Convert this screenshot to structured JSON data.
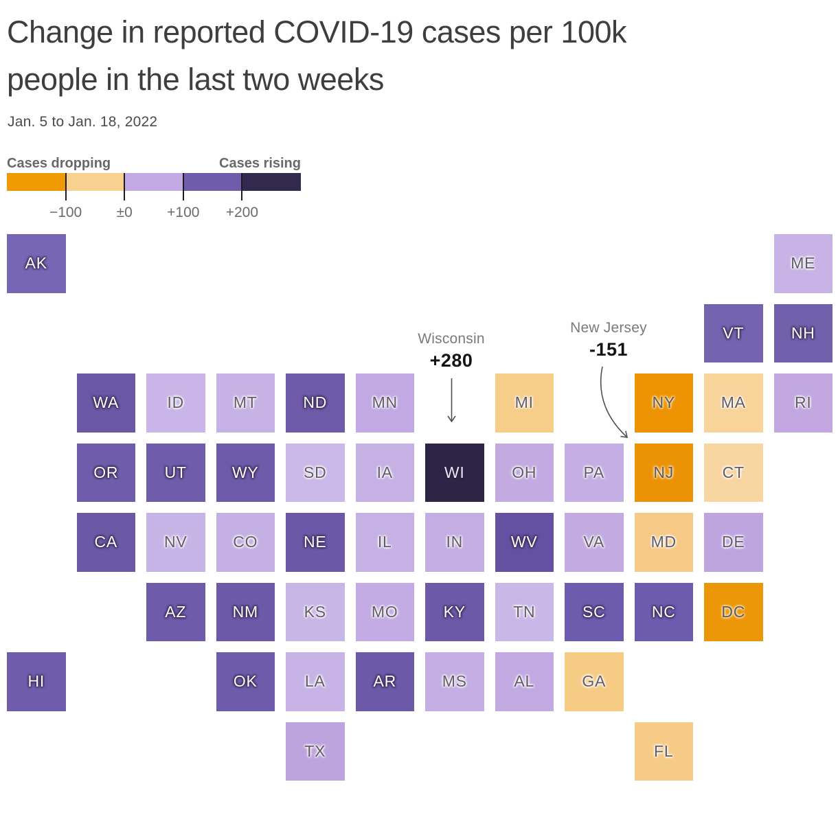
{
  "page": {
    "title_lines": [
      "Change in reported COVID-19 cases per 100k",
      "people in the last two weeks"
    ],
    "subtitle": "Jan. 5 to Jan. 18, 2022"
  },
  "legend": {
    "label_left": "Cases dropping",
    "label_right": "Cases rising",
    "swatches": [
      {
        "band": 1,
        "range": "-100 or less",
        "color": "#ee9a00"
      },
      {
        "band": 2,
        "range": "-100 to 0",
        "color": "#f8d190"
      },
      {
        "band": 3,
        "range": "0 to +100",
        "color": "#c2a9e4"
      },
      {
        "band": 4,
        "range": "+100 to +200",
        "color": "#6f5cab"
      },
      {
        "band": 5,
        "range": "+200 or more",
        "color": "#312a4e"
      }
    ],
    "ticks": [
      "−100",
      "±0",
      "+100",
      "+200"
    ]
  },
  "annotations": {
    "wisconsin": {
      "name": "Wisconsin",
      "value": "+280"
    },
    "new_jersey": {
      "name": "New Jersey",
      "value": "-151"
    }
  },
  "chart_data": {
    "type": "heatmap",
    "variant": "us-state-tile-grid-cartogram",
    "title": "Change in reported COVID-19 cases per 100k people in the last two weeks",
    "subtitle": "Jan. 5 to Jan. 18, 2022",
    "unit": "change in reported cases per 100k people over two weeks",
    "legend_position": "top-left",
    "color_bands": [
      {
        "band": 1,
        "range": "-100 or less",
        "color": "#ee9a00",
        "meaning": "cases dropping strongly"
      },
      {
        "band": 2,
        "range": "-100 to 0",
        "color": "#f8d190",
        "meaning": "cases dropping"
      },
      {
        "band": 3,
        "range": "0 to +100",
        "color": "#c2a9e4",
        "meaning": "cases rising"
      },
      {
        "band": 4,
        "range": "+100 to +200",
        "color": "#6f5cab",
        "meaning": "cases rising strongly"
      },
      {
        "band": 5,
        "range": "+200 or more",
        "color": "#312a4e",
        "meaning": "cases rising sharply"
      }
    ],
    "labeled_values": {
      "WI": 280,
      "NJ": -151
    },
    "states": [
      {
        "abbr": "AK",
        "row": 0,
        "col": 0,
        "band": 4,
        "fill": "#7766b4"
      },
      {
        "abbr": "ME",
        "row": 0,
        "col": 11,
        "band": 3,
        "fill": "#c7b3e5"
      },
      {
        "abbr": "VT",
        "row": 1,
        "col": 10,
        "band": 4,
        "fill": "#7463ae"
      },
      {
        "abbr": "NH",
        "row": 1,
        "col": 11,
        "band": 4,
        "fill": "#7160ac"
      },
      {
        "abbr": "WA",
        "row": 2,
        "col": 1,
        "band": 4,
        "fill": "#6a58a5"
      },
      {
        "abbr": "ID",
        "row": 2,
        "col": 2,
        "band": 3,
        "fill": "#c9b5e7"
      },
      {
        "abbr": "MT",
        "row": 2,
        "col": 3,
        "band": 3,
        "fill": "#c7b2e5"
      },
      {
        "abbr": "ND",
        "row": 2,
        "col": 4,
        "band": 4,
        "fill": "#6e5aa8"
      },
      {
        "abbr": "MN",
        "row": 2,
        "col": 5,
        "band": 3,
        "fill": "#c3a9e3"
      },
      {
        "abbr": "MI",
        "row": 2,
        "col": 7,
        "band": 2,
        "fill": "#f6cd89"
      },
      {
        "abbr": "NY",
        "row": 2,
        "col": 9,
        "band": 1,
        "fill": "#ee9403"
      },
      {
        "abbr": "MA",
        "row": 2,
        "col": 10,
        "band": 2,
        "fill": "#f8d39a"
      },
      {
        "abbr": "RI",
        "row": 2,
        "col": 11,
        "band": 3,
        "fill": "#c2a7e1"
      },
      {
        "abbr": "OR",
        "row": 3,
        "col": 1,
        "band": 4,
        "fill": "#6f5dab"
      },
      {
        "abbr": "UT",
        "row": 3,
        "col": 2,
        "band": 4,
        "fill": "#6f5dab"
      },
      {
        "abbr": "WY",
        "row": 3,
        "col": 3,
        "band": 4,
        "fill": "#6d5aa9"
      },
      {
        "abbr": "SD",
        "row": 3,
        "col": 4,
        "band": 3,
        "fill": "#cab8e8"
      },
      {
        "abbr": "IA",
        "row": 3,
        "col": 5,
        "band": 3,
        "fill": "#c6b1e5"
      },
      {
        "abbr": "WI",
        "row": 3,
        "col": 6,
        "band": 5,
        "fill": "#2e2546"
      },
      {
        "abbr": "OH",
        "row": 3,
        "col": 7,
        "band": 3,
        "fill": "#c3abe2"
      },
      {
        "abbr": "PA",
        "row": 3,
        "col": 8,
        "band": 3,
        "fill": "#c5aee4"
      },
      {
        "abbr": "NJ",
        "row": 3,
        "col": 9,
        "band": 1,
        "fill": "#ec9305"
      },
      {
        "abbr": "CT",
        "row": 3,
        "col": 10,
        "band": 2,
        "fill": "#f8d6a1"
      },
      {
        "abbr": "CA",
        "row": 4,
        "col": 1,
        "band": 4,
        "fill": "#6b59a6"
      },
      {
        "abbr": "NV",
        "row": 4,
        "col": 2,
        "band": 3,
        "fill": "#c7b4e6"
      },
      {
        "abbr": "CO",
        "row": 4,
        "col": 3,
        "band": 3,
        "fill": "#c5b0e4"
      },
      {
        "abbr": "NE",
        "row": 4,
        "col": 4,
        "band": 4,
        "fill": "#6b58a7"
      },
      {
        "abbr": "IL",
        "row": 4,
        "col": 5,
        "band": 3,
        "fill": "#c6b1e5"
      },
      {
        "abbr": "IN",
        "row": 4,
        "col": 6,
        "band": 3,
        "fill": "#c4ade3"
      },
      {
        "abbr": "WV",
        "row": 4,
        "col": 7,
        "band": 4,
        "fill": "#6551a2"
      },
      {
        "abbr": "VA",
        "row": 4,
        "col": 8,
        "band": 3,
        "fill": "#c3abe2"
      },
      {
        "abbr": "MD",
        "row": 4,
        "col": 9,
        "band": 2,
        "fill": "#f6c987"
      },
      {
        "abbr": "DE",
        "row": 4,
        "col": 10,
        "band": 3,
        "fill": "#bfa5e0"
      },
      {
        "abbr": "AZ",
        "row": 5,
        "col": 2,
        "band": 4,
        "fill": "#6e5ba9"
      },
      {
        "abbr": "NM",
        "row": 5,
        "col": 3,
        "band": 4,
        "fill": "#6c59a8"
      },
      {
        "abbr": "KS",
        "row": 5,
        "col": 4,
        "band": 3,
        "fill": "#c8b6e7"
      },
      {
        "abbr": "MO",
        "row": 5,
        "col": 5,
        "band": 3,
        "fill": "#c3abe3"
      },
      {
        "abbr": "KY",
        "row": 5,
        "col": 6,
        "band": 4,
        "fill": "#6c59a8"
      },
      {
        "abbr": "TN",
        "row": 5,
        "col": 7,
        "band": 3,
        "fill": "#c9b7e7"
      },
      {
        "abbr": "SC",
        "row": 5,
        "col": 8,
        "band": 4,
        "fill": "#6d5bad"
      },
      {
        "abbr": "NC",
        "row": 5,
        "col": 9,
        "band": 4,
        "fill": "#6d5bad"
      },
      {
        "abbr": "DC",
        "row": 5,
        "col": 10,
        "band": 1,
        "fill": "#ec9708"
      },
      {
        "abbr": "HI",
        "row": 6,
        "col": 0,
        "band": 4,
        "fill": "#6f5dab"
      },
      {
        "abbr": "OK",
        "row": 6,
        "col": 3,
        "band": 4,
        "fill": "#6e5caa"
      },
      {
        "abbr": "LA",
        "row": 6,
        "col": 4,
        "band": 3,
        "fill": "#c7b3e5"
      },
      {
        "abbr": "AR",
        "row": 6,
        "col": 5,
        "band": 4,
        "fill": "#6c59a8"
      },
      {
        "abbr": "MS",
        "row": 6,
        "col": 6,
        "band": 3,
        "fill": "#c5aee4"
      },
      {
        "abbr": "AL",
        "row": 6,
        "col": 7,
        "band": 3,
        "fill": "#c2a9e2"
      },
      {
        "abbr": "GA",
        "row": 6,
        "col": 8,
        "band": 2,
        "fill": "#f6cc84"
      },
      {
        "abbr": "TX",
        "row": 7,
        "col": 4,
        "band": 3,
        "fill": "#bda4de"
      },
      {
        "abbr": "FL",
        "row": 7,
        "col": 9,
        "band": 2,
        "fill": "#f6cb87"
      }
    ]
  }
}
